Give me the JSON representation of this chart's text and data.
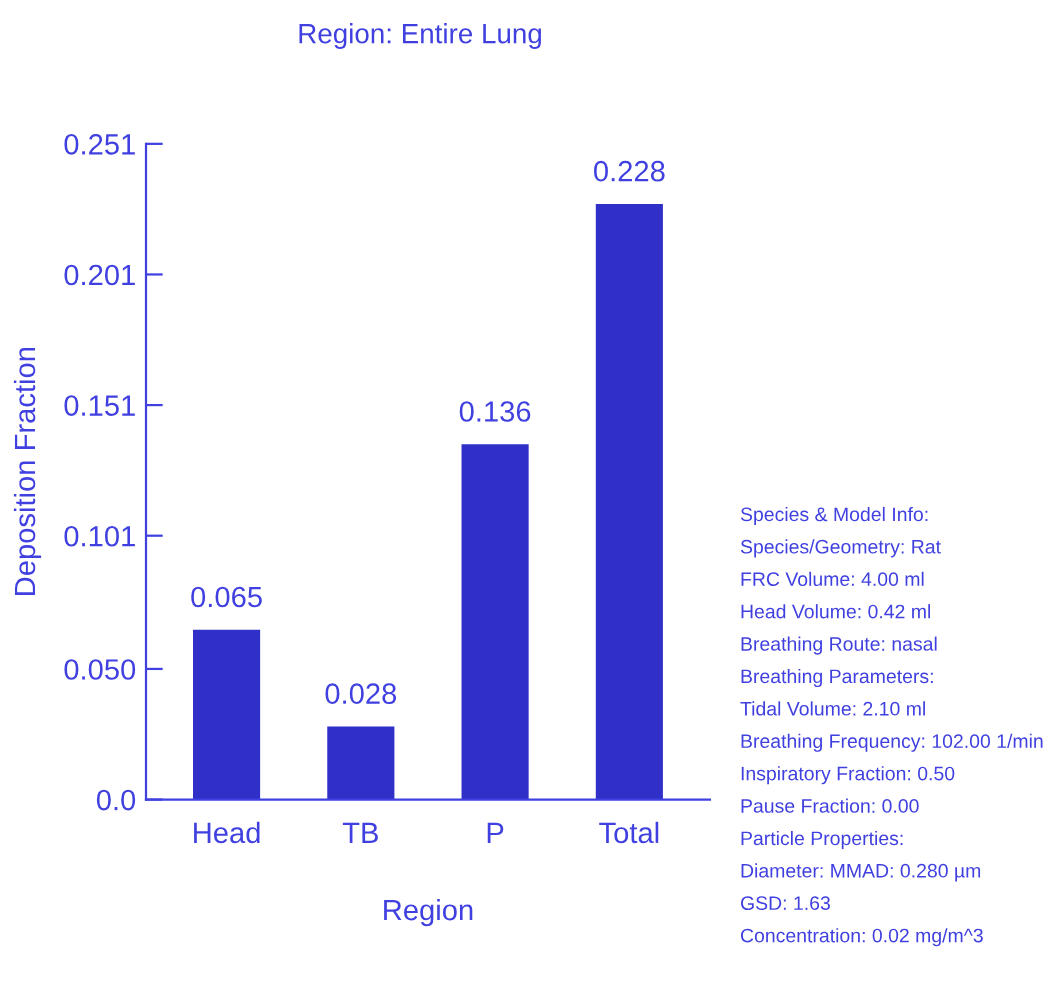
{
  "chart_data": {
    "type": "bar",
    "title": "Region: Entire Lung",
    "xlabel": "Region",
    "ylabel": "Deposition Fraction",
    "categories": [
      "Head",
      "TB",
      "P",
      "Total"
    ],
    "values": [
      0.065,
      0.028,
      0.136,
      0.228
    ],
    "color": "#3030c8",
    "data_labels": true,
    "ylim": [
      0,
      0.251
    ],
    "yticks": [
      {
        "value": 0,
        "label": "0.0"
      },
      {
        "value": 0.05,
        "label": "0.050"
      },
      0.101,
      0.151,
      0.201,
      0.251
    ],
    "grid": false,
    "annotations": [
      "Species & Model Info:",
      "Species/Geometry: Rat",
      "FRC Volume: 4.00 ml",
      "Head Volume: 0.42 ml",
      "Breathing Route: nasal",
      "Breathing Parameters:",
      "Tidal Volume: 2.10 ml",
      "Breathing Frequency: 102.00 1/min",
      "Inspiratory Fraction: 0.50",
      "Pause Fraction: 0.00",
      "Particle Properties:",
      "Diameter: MMAD: 0.280 µm",
      "GSD: 1.63",
      "Concentration: 0.02 mg/m^3"
    ]
  }
}
